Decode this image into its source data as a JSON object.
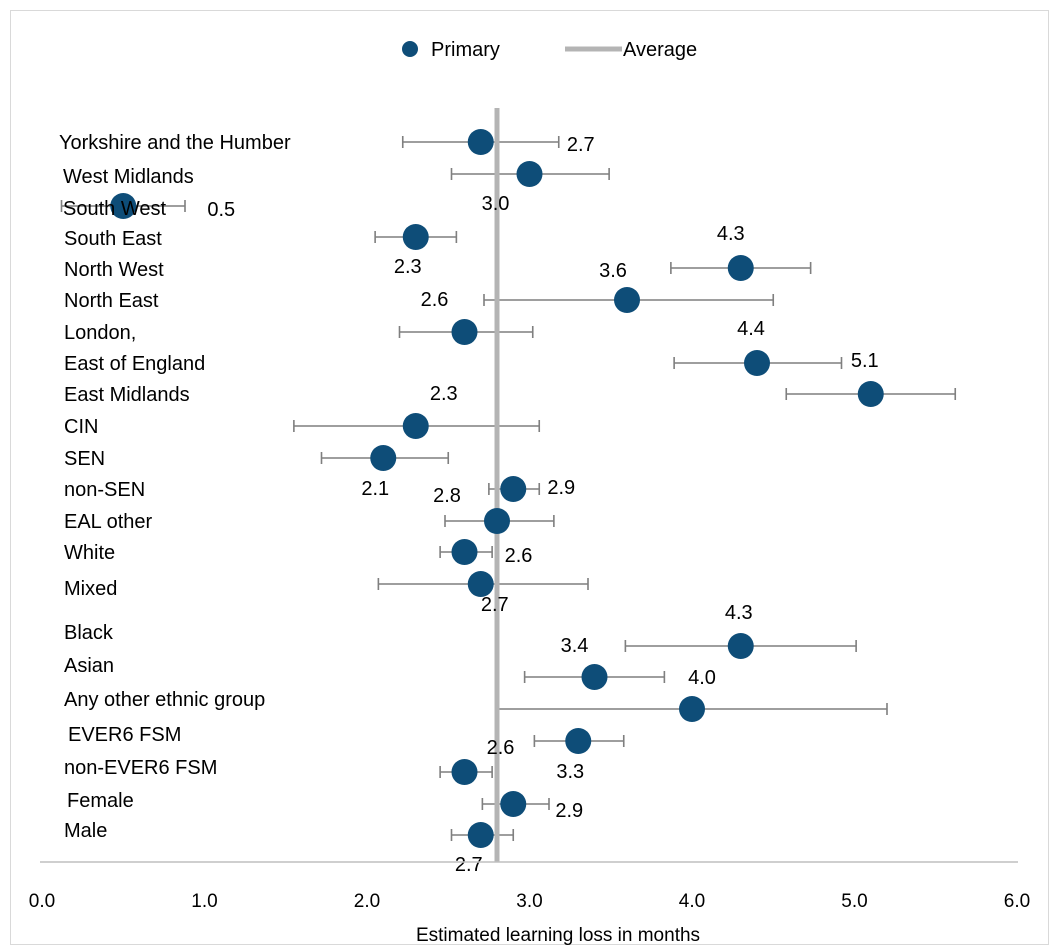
{
  "chart_data": {
    "type": "scatter",
    "orientation": "horizontal-dot-plot",
    "title": "",
    "xlabel": "Estimated learning loss in months",
    "ylabel": "",
    "xlim": [
      0.0,
      6.0
    ],
    "x_ticks": [
      "0.0",
      "1.0",
      "2.0",
      "3.0",
      "4.0",
      "5.0",
      "6.0"
    ],
    "legend": {
      "placement": "top-center",
      "entries": [
        {
          "name": "Primary",
          "kind": "marker"
        },
        {
          "name": "Average",
          "kind": "line"
        }
      ]
    },
    "grid": false,
    "colors": {
      "marker": "#0e4d78",
      "average": "#b4b4b4",
      "error_bar": "#7f7f7f"
    },
    "average": 2.8,
    "categories": [
      "Yorkshire and the Humber",
      "West Midlands",
      "South West",
      "South East",
      "North West",
      "North East",
      "London,",
      "East of England",
      "East Midlands",
      "CIN",
      "SEN",
      "non-SEN",
      "EAL other",
      "White",
      "Mixed",
      "Black",
      "Asian",
      "Any other ethnic group",
      "EVER6 FSM",
      "non-EVER6 FSM",
      "Female",
      "Male"
    ],
    "series": [
      {
        "name": "Primary",
        "values": [
          2.7,
          3.0,
          0.5,
          2.3,
          4.3,
          3.6,
          2.6,
          4.4,
          5.1,
          2.3,
          2.1,
          2.9,
          2.8,
          2.6,
          2.7,
          4.3,
          3.4,
          4.0,
          3.3,
          2.6,
          2.9,
          2.7
        ],
        "labels": [
          "2.7",
          "3.0",
          "0.5",
          "2.3",
          "4.3",
          "3.6",
          "2.6",
          "4.4",
          "5.1",
          "2.3",
          "2.1",
          "2.9",
          "2.8",
          "2.6",
          "2.7",
          "4.3",
          "3.4",
          "4.0",
          "3.3",
          "2.6",
          "2.9",
          "2.7"
        ],
        "error_low": [
          2.22,
          2.52,
          0.12,
          2.05,
          3.87,
          2.72,
          2.2,
          3.89,
          4.58,
          1.55,
          1.72,
          2.75,
          2.48,
          2.45,
          2.07,
          3.59,
          2.97,
          2.8,
          3.03,
          2.45,
          2.71,
          2.52
        ],
        "error_high": [
          3.18,
          3.49,
          0.88,
          2.55,
          4.73,
          4.5,
          3.02,
          4.92,
          5.62,
          3.06,
          2.5,
          3.06,
          3.15,
          2.77,
          3.36,
          5.01,
          3.83,
          5.2,
          3.58,
          2.77,
          3.12,
          2.9
        ]
      }
    ]
  }
}
